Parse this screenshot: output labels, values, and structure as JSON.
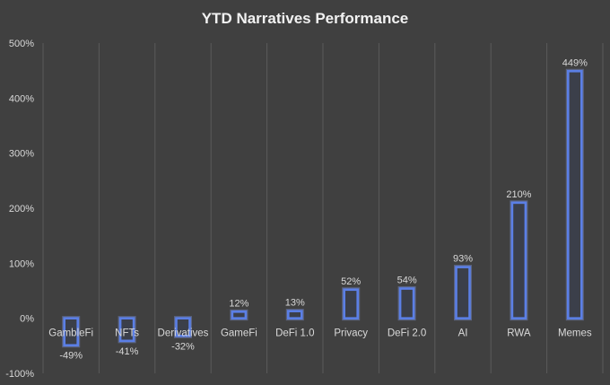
{
  "chart_data": {
    "type": "bar",
    "title": "YTD Narratives Performance",
    "xlabel": "",
    "ylabel": "",
    "categories": [
      "GambleFi",
      "NFTs",
      "Derivatives",
      "GameFi",
      "DeFi 1.0",
      "Privacy",
      "DeFi 2.0",
      "AI",
      "RWA",
      "Memes"
    ],
    "values": [
      -49,
      -41,
      -32,
      12,
      13,
      52,
      54,
      93,
      210,
      449
    ],
    "data_labels": [
      "-49%",
      "-41%",
      "-32%",
      "12%",
      "13%",
      "52%",
      "54%",
      "93%",
      "210%",
      "449%"
    ],
    "ylim": [
      -100,
      500
    ],
    "y_ticks": [
      -100,
      0,
      100,
      200,
      300,
      400,
      500
    ],
    "y_tick_labels": [
      "-100%",
      "0%",
      "100%",
      "200%",
      "300%",
      "400%",
      "500%"
    ],
    "grid": "vertical category separators",
    "legend": "none",
    "colors": {
      "background": "#404040",
      "bar_outline": "#5b7fe6",
      "bar_fill": "#3b3f4a",
      "text": "#d9d9d9",
      "grid": "#5a5a5a"
    }
  }
}
